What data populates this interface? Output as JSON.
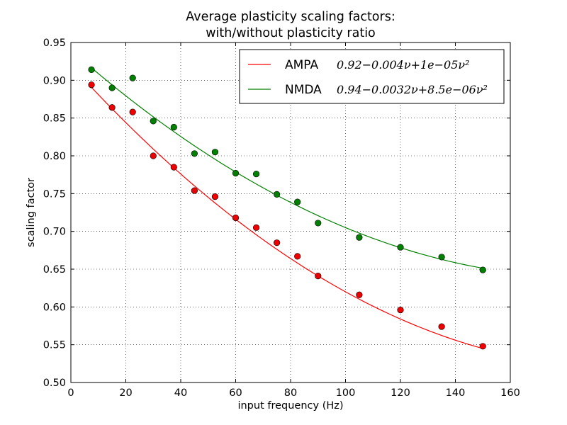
{
  "chart_data": {
    "type": "scatter",
    "title": [
      "Average plasticity scaling factors:",
      "with/without plasticity ratio"
    ],
    "xlabel": "input frequency (Hz)",
    "ylabel": "scaling factor",
    "xlim": [
      0,
      160
    ],
    "ylim": [
      0.5,
      0.95
    ],
    "x_ticks": [
      "0",
      "20",
      "40",
      "60",
      "80",
      "100",
      "120",
      "140",
      "160"
    ],
    "y_ticks": [
      "0.50",
      "0.55",
      "0.60",
      "0.65",
      "0.70",
      "0.75",
      "0.80",
      "0.85",
      "0.90",
      "0.95"
    ],
    "grid": true,
    "legend_position": "top-right",
    "series": [
      {
        "name": "AMPA",
        "equation": "0.92−0.004ν+1e−05ν²",
        "color": "#ff0000",
        "marker_fill": "#ee0000",
        "fit": {
          "c0": 0.92,
          "c1": -0.004,
          "c2": 1e-05
        },
        "x": [
          7.5,
          15,
          22.5,
          30,
          37.5,
          45,
          52.5,
          60,
          67.5,
          75,
          82.5,
          90,
          105,
          120,
          135,
          150
        ],
        "y": [
          0.894,
          0.864,
          0.858,
          0.8,
          0.785,
          0.754,
          0.746,
          0.718,
          0.705,
          0.685,
          0.667,
          0.641,
          0.616,
          0.596,
          0.574,
          0.548
        ]
      },
      {
        "name": "NMDA",
        "equation": "0.94−0.0032ν+8.5e−06ν²",
        "color": "#008000",
        "marker_fill": "#007f00",
        "fit": {
          "c0": 0.94,
          "c1": -0.0032,
          "c2": 8.5e-06
        },
        "x": [
          7.5,
          15,
          22.5,
          30,
          37.5,
          45,
          52.5,
          60,
          67.5,
          75,
          82.5,
          90,
          105,
          120,
          135,
          150
        ],
        "y": [
          0.914,
          0.89,
          0.903,
          0.846,
          0.838,
          0.803,
          0.805,
          0.777,
          0.776,
          0.749,
          0.739,
          0.711,
          0.692,
          0.679,
          0.666,
          0.649
        ]
      }
    ]
  }
}
